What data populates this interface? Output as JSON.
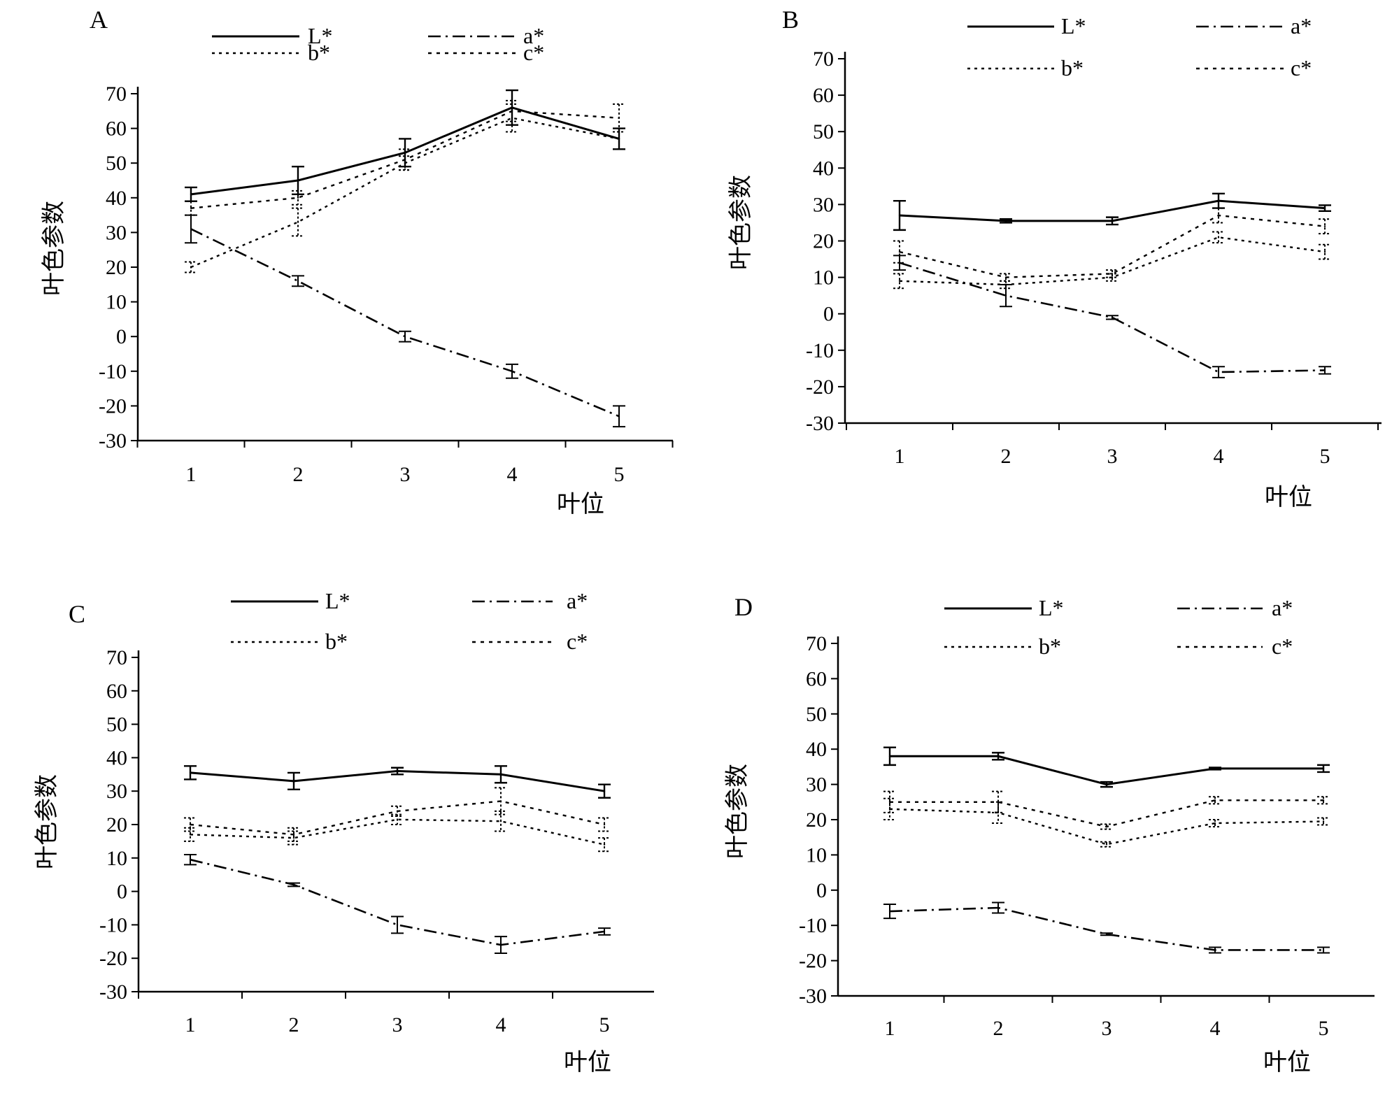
{
  "charts": [
    {
      "panel": "A",
      "chart_data": {
        "type": "line",
        "title": "",
        "xlabel": "叶位",
        "ylabel": "叶色参数",
        "categories": [
          "1",
          "2",
          "3",
          "4",
          "5"
        ],
        "ylim": [
          -30,
          70
        ],
        "yticks": [
          "70",
          "60",
          "50",
          "40",
          "30",
          "20",
          "10",
          "0",
          "-10",
          "-20",
          "-30"
        ],
        "legend_position": "top",
        "series": [
          {
            "name": "L*",
            "style": "solid",
            "values": [
              41,
              45,
              53,
              66,
              57
            ],
            "errors": [
              2,
              4,
              4,
              5,
              3
            ]
          },
          {
            "name": "a*",
            "style": "dashdot",
            "values": [
              31,
              16,
              0,
              -10,
              -23
            ],
            "errors": [
              4,
              1.5,
              1.5,
              2,
              3
            ]
          },
          {
            "name": "b*",
            "style": "dotted",
            "values": [
              20,
              33,
              50,
              63,
              57
            ],
            "errors": [
              1.5,
              4,
              2,
              4,
              3
            ]
          },
          {
            "name": "c*",
            "style": "dashed",
            "values": [
              37,
              40,
              51,
              65,
              63
            ],
            "errors": [
              2,
              2,
              3,
              3,
              4
            ]
          }
        ]
      }
    },
    {
      "panel": "B",
      "chart_data": {
        "type": "line",
        "title": "",
        "xlabel": "叶位",
        "ylabel": "叶色参数",
        "categories": [
          "1",
          "2",
          "3",
          "4",
          "5"
        ],
        "ylim": [
          -30,
          70
        ],
        "yticks": [
          "70",
          "60",
          "50",
          "40",
          "30",
          "20",
          "10",
          "0",
          "-10",
          "-20",
          "-30"
        ],
        "legend_position": "top",
        "series": [
          {
            "name": "L*",
            "style": "solid",
            "values": [
              27,
              25.5,
              25.5,
              31,
              29
            ],
            "errors": [
              4,
              0.5,
              1,
              2,
              0.8
            ]
          },
          {
            "name": "a*",
            "style": "dashdot",
            "values": [
              14,
              5,
              -1,
              -16,
              -15.5
            ],
            "errors": [
              2,
              3,
              0.5,
              1.5,
              1
            ]
          },
          {
            "name": "b*",
            "style": "dotted",
            "values": [
              9,
              8,
              10,
              21,
              17
            ],
            "errors": [
              2,
              1,
              1,
              1.5,
              2
            ]
          },
          {
            "name": "c*",
            "style": "dashed",
            "values": [
              17,
              10,
              11,
              27,
              24
            ],
            "errors": [
              3,
              1,
              1,
              2,
              2
            ]
          }
        ]
      }
    },
    {
      "panel": "C",
      "chart_data": {
        "type": "line",
        "title": "",
        "xlabel": "叶位",
        "ylabel": "叶色参数",
        "categories": [
          "1",
          "2",
          "3",
          "4",
          "5"
        ],
        "ylim": [
          -30,
          70
        ],
        "yticks": [
          "70",
          "60",
          "50",
          "40",
          "30",
          "20",
          "10",
          "0",
          "-10",
          "-20",
          "-30"
        ],
        "legend_position": "top",
        "series": [
          {
            "name": "L*",
            "style": "solid",
            "values": [
              35.5,
              33,
              36,
              35,
              30
            ],
            "errors": [
              2,
              2.5,
              1,
              2.5,
              2
            ]
          },
          {
            "name": "a*",
            "style": "dashdot",
            "values": [
              9.5,
              2,
              -10,
              -16,
              -12
            ],
            "errors": [
              1.5,
              0.5,
              2.5,
              2.5,
              1
            ]
          },
          {
            "name": "b*",
            "style": "dotted",
            "values": [
              17,
              16,
              21.5,
              21,
              14
            ],
            "errors": [
              2,
              2,
              1.5,
              3,
              2
            ]
          },
          {
            "name": "c*",
            "style": "dashed",
            "values": [
              20,
              17,
              24,
              27,
              20
            ],
            "errors": [
              2,
              2,
              1.5,
              4,
              2
            ]
          }
        ]
      }
    },
    {
      "panel": "D",
      "chart_data": {
        "type": "line",
        "title": "",
        "xlabel": "叶位",
        "ylabel": "叶色参数",
        "categories": [
          "1",
          "2",
          "3",
          "4",
          "5"
        ],
        "ylim": [
          -30,
          70
        ],
        "yticks": [
          "70",
          "60",
          "50",
          "40",
          "30",
          "20",
          "10",
          "0",
          "-10",
          "-20",
          "-30"
        ],
        "legend_position": "top",
        "series": [
          {
            "name": "L*",
            "style": "solid",
            "values": [
              38,
              38,
              30,
              34.5,
              34.5
            ],
            "errors": [
              2.5,
              1,
              0.7,
              0.3,
              1
            ]
          },
          {
            "name": "a*",
            "style": "dashdot",
            "values": [
              -6,
              -5,
              -12.5,
              -17,
              -17
            ],
            "errors": [
              2,
              1.5,
              0.3,
              0.8,
              0.8
            ]
          },
          {
            "name": "b*",
            "style": "dotted",
            "values": [
              23,
              22,
              13,
              19,
              19.5
            ],
            "errors": [
              3,
              3,
              0.7,
              1,
              1
            ]
          },
          {
            "name": "c*",
            "style": "dashed",
            "values": [
              25,
              25,
              18,
              25.5,
              25.5
            ],
            "errors": [
              3,
              3,
              0.7,
              1,
              1
            ]
          }
        ]
      }
    }
  ]
}
